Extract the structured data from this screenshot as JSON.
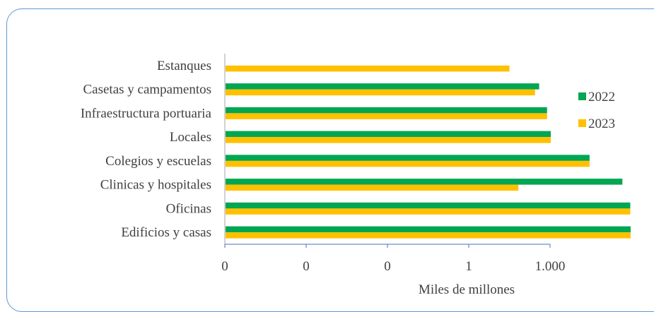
{
  "chart_data": {
    "type": "bar",
    "orientation": "horizontal",
    "xscale": "log",
    "categories": [
      "Edificios y casas",
      "Oficinas",
      "Clinicas y hospitales",
      "Colegios y escuelas",
      "Locales",
      "Infraestructura portuaria",
      "Casetas y campamentos",
      "Estanques"
    ],
    "series": [
      {
        "name": "2022",
        "color": "#00a651",
        "values": [
          960,
          950,
          760,
          300,
          100,
          90,
          72,
          null
        ]
      },
      {
        "name": "2023",
        "color": "#ffc000",
        "values": [
          960,
          950,
          40,
          300,
          100,
          90,
          64,
          31
        ]
      }
    ],
    "xticks": [
      "0",
      "0",
      "0",
      "1",
      "1.000"
    ],
    "xlabel": "Miles de millones",
    "legend_position": "right",
    "grid": false
  }
}
